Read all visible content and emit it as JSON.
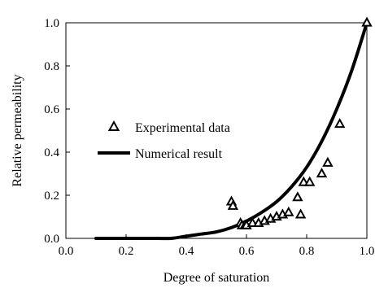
{
  "chart_data": {
    "type": "scatter",
    "title": "",
    "xlabel": "Degree of saturation",
    "ylabel": "Relative permeability",
    "xlim": [
      0.0,
      1.0
    ],
    "ylim": [
      0.0,
      1.0
    ],
    "x_ticks": [
      "0.0",
      "0.2",
      "0.4",
      "0.6",
      "0.8",
      "1.0"
    ],
    "y_ticks": [
      "0.0",
      "0.2",
      "0.4",
      "0.6",
      "0.8",
      "1.0"
    ],
    "grid": false,
    "legend_position": "center-left",
    "series": [
      {
        "name": "Experimental data",
        "kind": "scatter",
        "marker": "open-triangle",
        "color": "#000000",
        "x": [
          0.55,
          0.555,
          0.58,
          0.585,
          0.595,
          0.6,
          0.62,
          0.64,
          0.66,
          0.68,
          0.7,
          0.72,
          0.74,
          0.77,
          0.78,
          0.79,
          0.81,
          0.85,
          0.87,
          0.91,
          1.0
        ],
        "y": [
          0.17,
          0.15,
          0.07,
          0.06,
          0.06,
          0.06,
          0.07,
          0.07,
          0.08,
          0.09,
          0.1,
          0.11,
          0.12,
          0.19,
          0.11,
          0.26,
          0.26,
          0.3,
          0.35,
          0.53,
          1.0
        ]
      },
      {
        "name": "Numerical result",
        "kind": "line",
        "color": "#000000",
        "x": [
          0.1,
          0.2,
          0.3,
          0.35,
          0.4,
          0.45,
          0.5,
          0.55,
          0.6,
          0.65,
          0.7,
          0.75,
          0.8,
          0.85,
          0.9,
          0.95,
          1.0
        ],
        "y": [
          0.0,
          0.0,
          0.0,
          0.0,
          0.01,
          0.02,
          0.03,
          0.05,
          0.08,
          0.12,
          0.17,
          0.24,
          0.33,
          0.45,
          0.6,
          0.78,
          1.0
        ]
      }
    ]
  }
}
